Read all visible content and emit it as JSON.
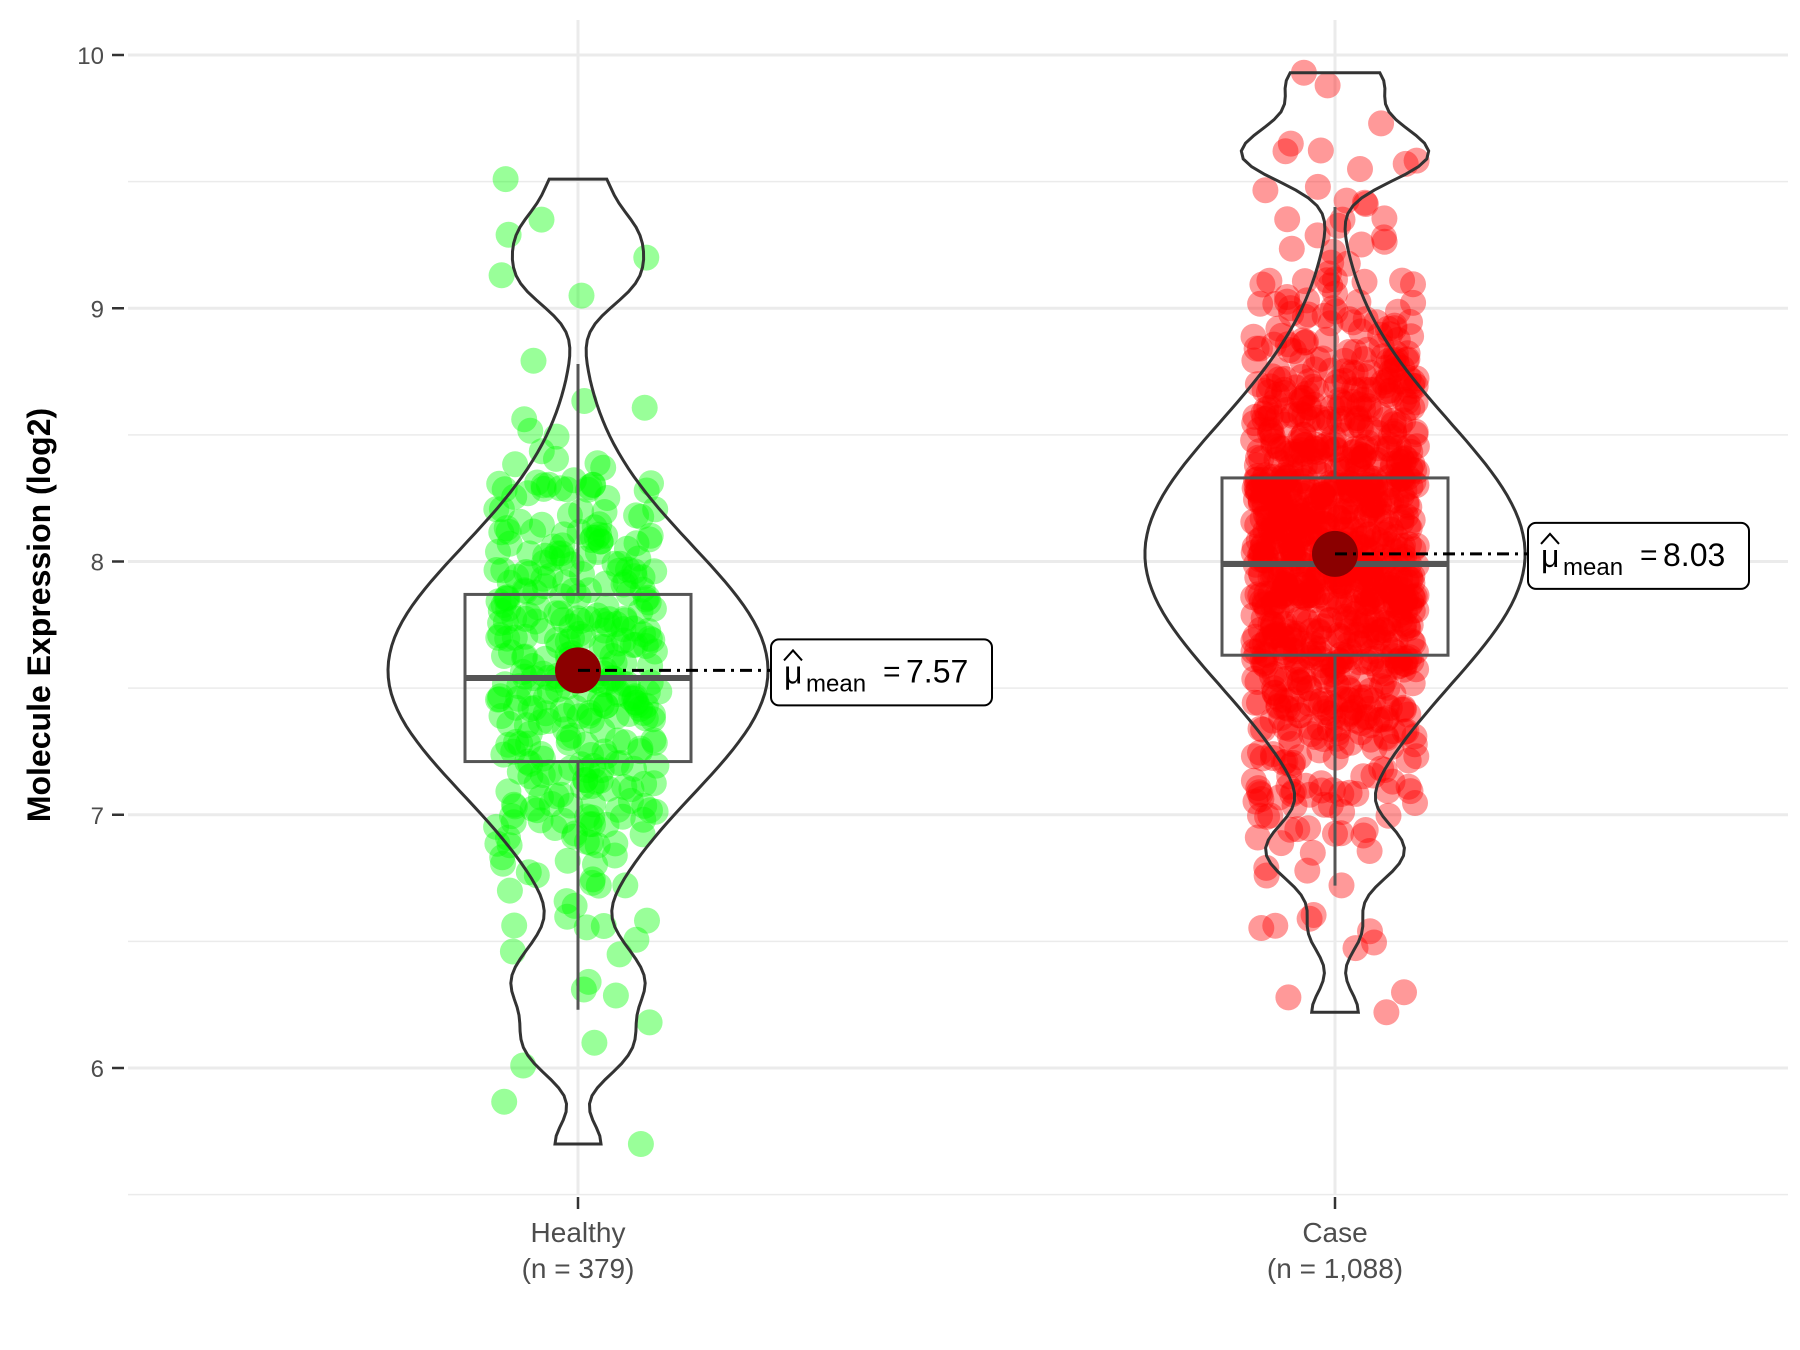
{
  "chart_data": {
    "type": "violin",
    "title": "",
    "xlabel": "",
    "ylabel": "Molecule Expression (log2)",
    "ylim": [
      5.5,
      10.1
    ],
    "y_ticks": [
      6,
      7,
      8,
      9,
      10
    ],
    "grid": true,
    "legend": "none",
    "annotation_symbol": "μ",
    "annotation_subscript": "mean",
    "groups": [
      {
        "label": "Healthy",
        "n_label": "(n = 379)",
        "n": 379,
        "color": "#00ff00",
        "mean": 7.57,
        "mean_label": "7.57",
        "box": {
          "q1": 7.21,
          "median": 7.54,
          "q3": 7.87,
          "whisker_low": 6.23,
          "whisker_high": 8.78
        },
        "min": 5.7,
        "max": 9.51,
        "extremes": [
          5.7,
          6.01,
          6.1,
          6.18,
          6.31,
          6.34,
          6.46,
          9.05,
          9.13,
          9.2,
          9.29,
          9.35,
          9.51
        ]
      },
      {
        "label": "Case",
        "n_label": "(n = 1,088)",
        "n": 1088,
        "color": "#ff0000",
        "mean": 8.03,
        "mean_label": "8.03",
        "box": {
          "q1": 7.63,
          "median": 7.99,
          "q3": 8.33,
          "whisker_low": 6.72,
          "whisker_high": 9.4
        },
        "min": 6.22,
        "max": 9.93,
        "extremes": [
          6.22,
          6.54,
          6.76,
          6.85,
          6.91,
          9.55,
          9.57,
          9.62,
          9.65,
          9.73,
          9.88,
          9.93
        ]
      }
    ],
    "mean_point_color": "#8b0000"
  }
}
